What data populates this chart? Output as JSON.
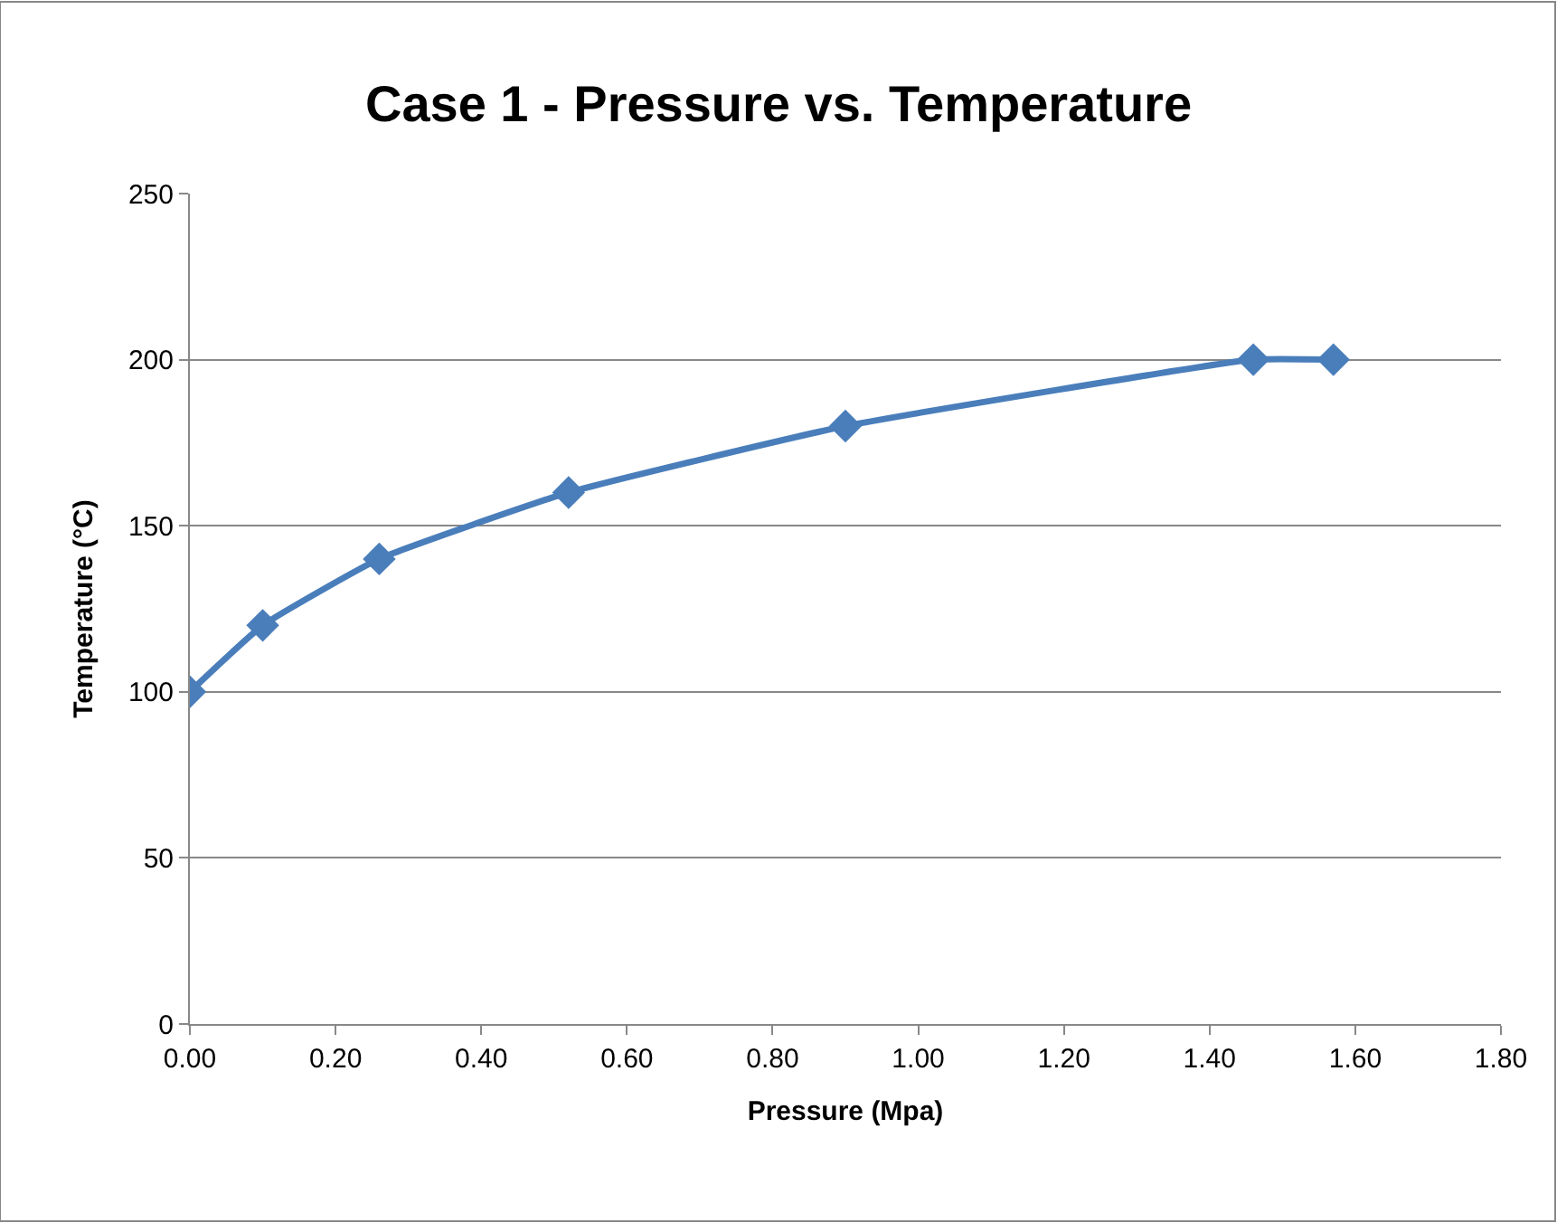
{
  "chart_data": {
    "type": "line",
    "title": "Case 1 - Pressure vs. Temperature",
    "xlabel": "Pressure (Mpa)",
    "ylabel": "Temperature (°C)",
    "x": [
      0,
      0.1,
      0.26,
      0.52,
      0.9,
      1.46,
      1.57
    ],
    "series": [
      {
        "color": "#4a7ebb",
        "values": [
          100,
          120,
          140,
          160,
          180,
          200,
          200
        ]
      }
    ],
    "xlim": [
      0,
      1.8
    ],
    "xticks": [
      {
        "value": 0,
        "label": "0.00"
      },
      {
        "value": 0.2,
        "label": "0.20"
      },
      {
        "value": 0.4,
        "label": "0.40"
      },
      {
        "value": 0.6,
        "label": "0.60"
      },
      {
        "value": 0.8,
        "label": "0.80"
      },
      {
        "value": 1.0,
        "label": "1.00"
      },
      {
        "value": 1.2,
        "label": "1.20"
      },
      {
        "value": 1.4,
        "label": "1.40"
      },
      {
        "value": 1.6,
        "label": "1.60"
      },
      {
        "value": 1.8,
        "label": "1.80"
      }
    ],
    "ylim": [
      0,
      250
    ],
    "yticks": [
      0,
      50,
      100,
      150,
      200,
      250
    ],
    "grid": "y",
    "legend": false,
    "marker": "diamond",
    "line_style": "solid"
  }
}
